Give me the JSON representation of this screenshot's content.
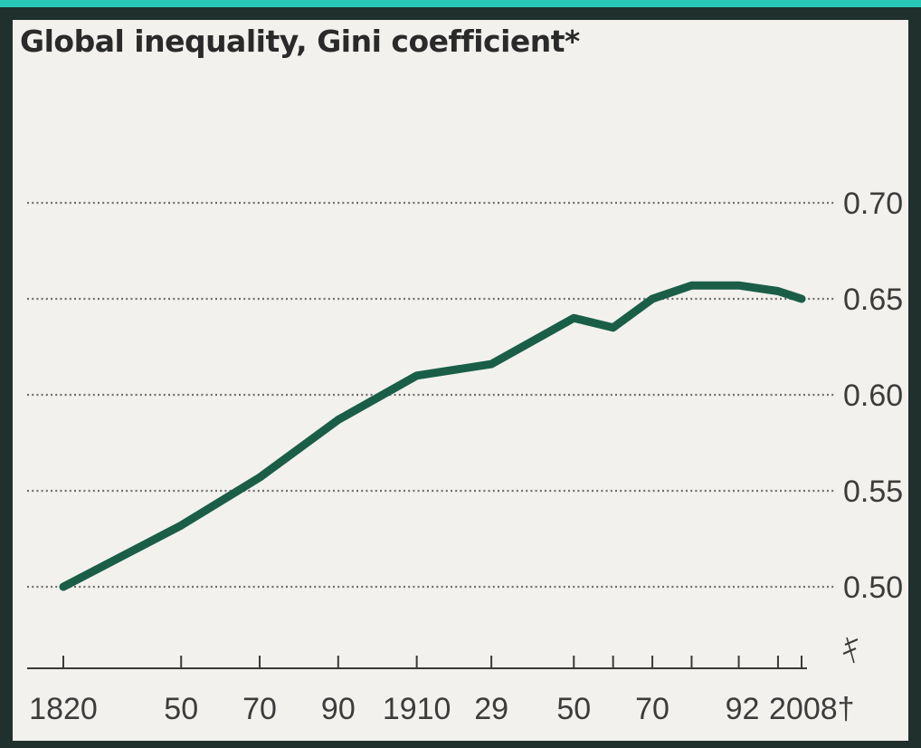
{
  "chart_data": {
    "type": "line",
    "title": "Global inequality, Gini coefficient*",
    "xlabel": "",
    "ylabel": "",
    "x_tick_labels": [
      "1820",
      "50",
      "70",
      "90",
      "1910",
      "29",
      "50",
      "70",
      "92",
      "2008†"
    ],
    "y_tick_labels": [
      "0.70",
      "0.65",
      "0.60",
      "0.55",
      "0.50"
    ],
    "y_ticks": [
      0.7,
      0.65,
      0.6,
      0.55,
      0.5
    ],
    "ylim": [
      0.46,
      0.72
    ],
    "xlim": [
      1820,
      2008
    ],
    "y_axis_side": "right",
    "grid": "dotted horizontal",
    "axis_break": true,
    "series": [
      {
        "color": "#1a5e48",
        "points": [
          {
            "x": 1820,
            "y": 0.5
          },
          {
            "x": 1850,
            "y": 0.532
          },
          {
            "x": 1870,
            "y": 0.557
          },
          {
            "x": 1890,
            "y": 0.587
          },
          {
            "x": 1910,
            "y": 0.61
          },
          {
            "x": 1929,
            "y": 0.616
          },
          {
            "x": 1950,
            "y": 0.64
          },
          {
            "x": 1960,
            "y": 0.635
          },
          {
            "x": 1970,
            "y": 0.65
          },
          {
            "x": 1980,
            "y": 0.657
          },
          {
            "x": 1992,
            "y": 0.657
          },
          {
            "x": 2002,
            "y": 0.654
          },
          {
            "x": 2008,
            "y": 0.65
          }
        ]
      }
    ]
  },
  "colors": {
    "background": "#f2f1ee",
    "frame": "#20302c",
    "accent_line": "#29c7b6",
    "series": "#1a5e48",
    "grid": "#6f6f6f",
    "text": "#3c3c3c"
  }
}
